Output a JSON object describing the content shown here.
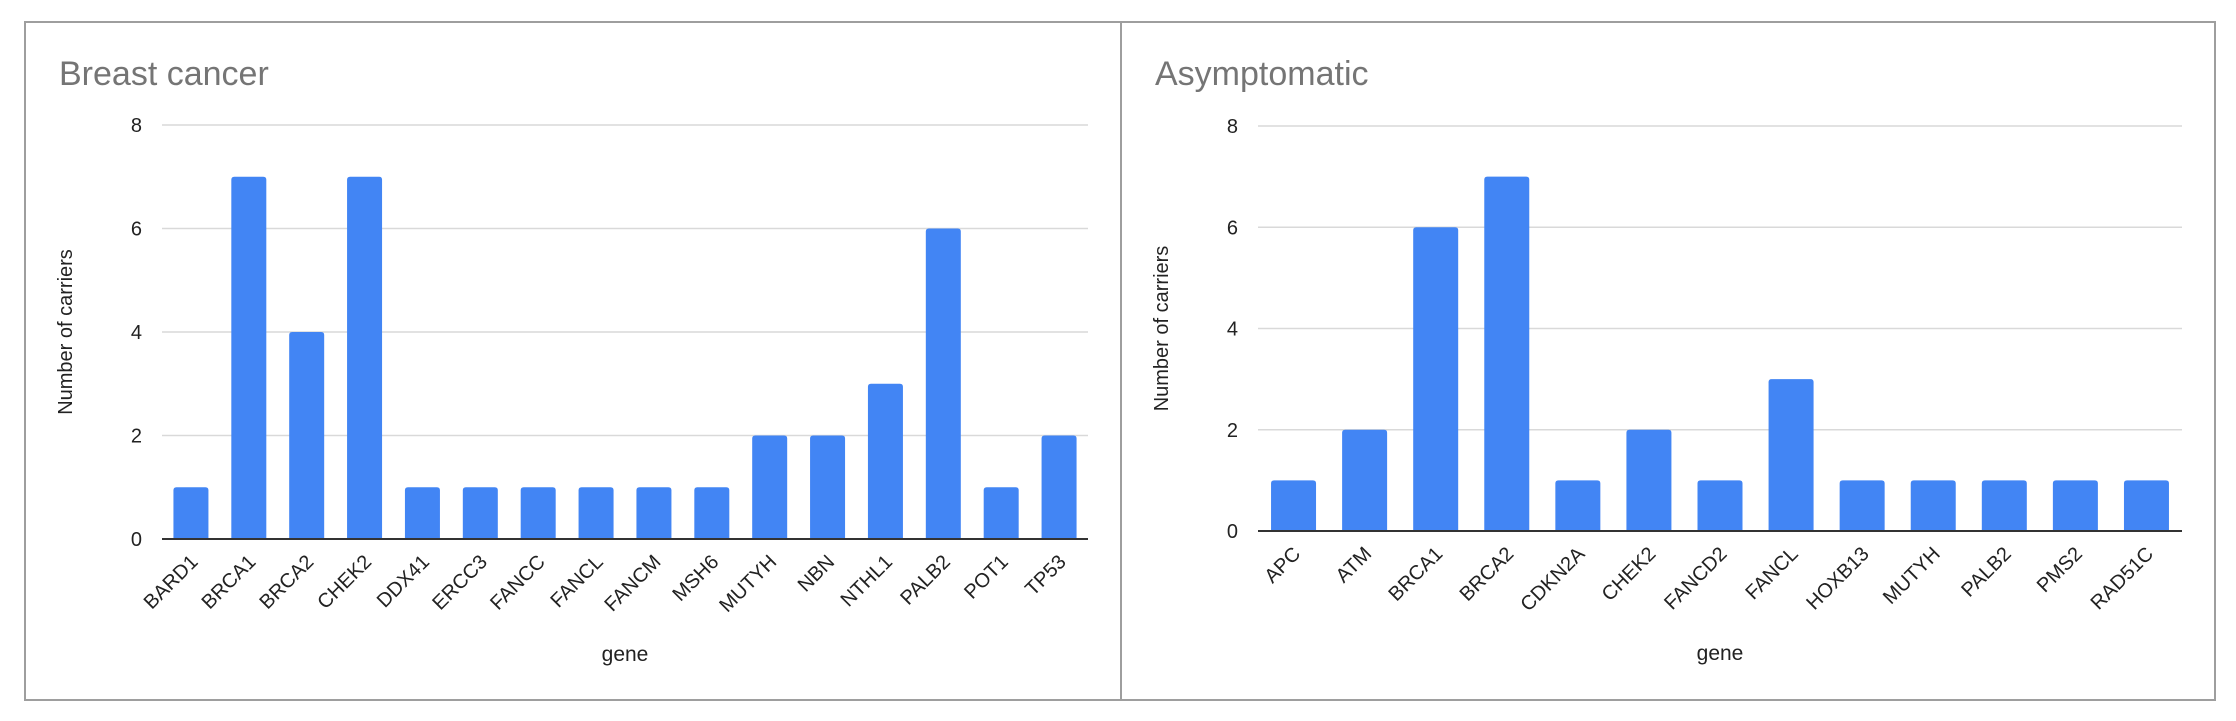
{
  "chart_data": [
    {
      "type": "bar",
      "title": "Breast cancer",
      "xlabel": "gene",
      "ylabel": "Number of carriers",
      "categories": [
        "BARD1",
        "BRCA1",
        "BRCA2",
        "CHEK2",
        "DDX41",
        "ERCC3",
        "FANCC",
        "FANCL",
        "FANCM",
        "MSH6",
        "MUTYH",
        "NBN",
        "NTHL1",
        "PALB2",
        "POT1",
        "TP53"
      ],
      "values": [
        1,
        7,
        4,
        7,
        1,
        1,
        1,
        1,
        1,
        1,
        2,
        2,
        3,
        6,
        1,
        2
      ],
      "ylim": [
        0,
        8
      ],
      "yticks": [
        0,
        2,
        4,
        6,
        8
      ],
      "grid": true,
      "legend": "none",
      "color": "#4285f4"
    },
    {
      "type": "bar",
      "title": "Asymptomatic",
      "xlabel": "gene",
      "ylabel": "Number of carriers",
      "categories": [
        "APC",
        "ATM",
        "BRCA1",
        "BRCA2",
        "CDKN2A",
        "CHEK2",
        "FANCD2",
        "FANCL",
        "HOXB13",
        "MUTYH",
        "PALB2",
        "PMS2",
        "RAD51C"
      ],
      "values": [
        1,
        2,
        6,
        7,
        1,
        2,
        1,
        3,
        1,
        1,
        1,
        1,
        1
      ],
      "ylim": [
        0,
        8
      ],
      "yticks": [
        0,
        2,
        4,
        6,
        8
      ],
      "grid": true,
      "legend": "none",
      "color": "#4285f4"
    }
  ]
}
